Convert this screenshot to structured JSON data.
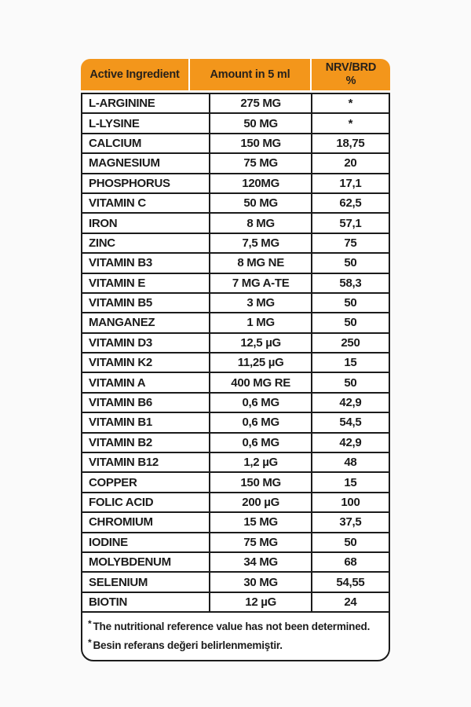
{
  "table": {
    "accent_color": "#f3961b",
    "border_color": "#1b1b1b",
    "header": {
      "ingredient_label": "Active Ingredient",
      "amount_label": "Amount in 5 ml",
      "nrv_label_line1": "NRV/BRD",
      "nrv_label_line2": "%"
    },
    "rows": [
      {
        "ingredient": "L-ARGININE",
        "amount": "275 MG",
        "nrv": "*"
      },
      {
        "ingredient": "L-LYSINE",
        "amount": "50 MG",
        "nrv": "*"
      },
      {
        "ingredient": "CALCIUM",
        "amount": "150 MG",
        "nrv": "18,75"
      },
      {
        "ingredient": "MAGNESIUM",
        "amount": "75 MG",
        "nrv": "20"
      },
      {
        "ingredient": "PHOSPHORUS",
        "amount": "120MG",
        "nrv": "17,1"
      },
      {
        "ingredient": "VITAMIN C",
        "amount": "50 MG",
        "nrv": "62,5"
      },
      {
        "ingredient": "IRON",
        "amount": "8 MG",
        "nrv": "57,1"
      },
      {
        "ingredient": "ZINC",
        "amount": "7,5 MG",
        "nrv": "75"
      },
      {
        "ingredient": "VITAMIN B3",
        "amount": "8 MG NE",
        "nrv": "50"
      },
      {
        "ingredient": "VITAMIN E",
        "amount": "7 MG A-TE",
        "nrv": "58,3"
      },
      {
        "ingredient": "VITAMIN B5",
        "amount": "3 MG",
        "nrv": "50"
      },
      {
        "ingredient": "MANGANEZ",
        "amount": "1 MG",
        "nrv": "50"
      },
      {
        "ingredient": "VITAMIN D3",
        "amount": "12,5 µG",
        "nrv": "250"
      },
      {
        "ingredient": "VITAMIN K2",
        "amount": "11,25 µG",
        "nrv": "15"
      },
      {
        "ingredient": "VITAMIN A",
        "amount": "400 MG RE",
        "nrv": "50"
      },
      {
        "ingredient": "VITAMIN B6",
        "amount": "0,6 MG",
        "nrv": "42,9"
      },
      {
        "ingredient": "VITAMIN B1",
        "amount": "0,6 MG",
        "nrv": "54,5"
      },
      {
        "ingredient": "VITAMIN B2",
        "amount": "0,6 MG",
        "nrv": "42,9"
      },
      {
        "ingredient": "VITAMIN B12",
        "amount": "1,2 µG",
        "nrv": "48"
      },
      {
        "ingredient": "COPPER",
        "amount": "150 MG",
        "nrv": "15"
      },
      {
        "ingredient": "FOLIC ACID",
        "amount": "200 µG",
        "nrv": "100"
      },
      {
        "ingredient": "CHROMIUM",
        "amount": "15 MG",
        "nrv": "37,5"
      },
      {
        "ingredient": "IODINE",
        "amount": "75 MG",
        "nrv": "50"
      },
      {
        "ingredient": "MOLYBDENUM",
        "amount": "34 MG",
        "nrv": "68"
      },
      {
        "ingredient": "SELENIUM",
        "amount": "30 MG",
        "nrv": "54,55"
      },
      {
        "ingredient": "BIOTIN",
        "amount": "12 µG",
        "nrv": "24"
      }
    ],
    "footnotes": [
      {
        "marker": "*",
        "text": "The nutritional reference value has not been determined."
      },
      {
        "marker": "*",
        "text": "Besin referans değeri belirlenmemiştir."
      }
    ]
  }
}
